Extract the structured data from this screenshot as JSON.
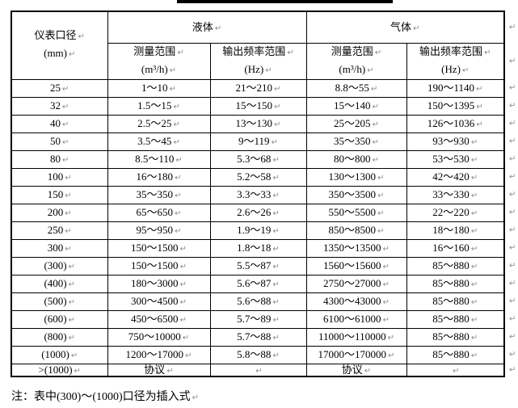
{
  "formatting_mark": "↵",
  "colors": {
    "border": "#000000",
    "formatting_mark_gray": "#8a8a8a",
    "title_underline": "#000000"
  },
  "table": {
    "header": {
      "diameter_line1": "仪表口径",
      "diameter_line2": "(mm)",
      "group_liquid": "液体",
      "group_gas": "气体",
      "range_line1": "测量范围",
      "range_line2": "(m³/h)",
      "freq_line1": "输出频率范围",
      "freq_line2": "(Hz)"
    },
    "rows": [
      [
        "25",
        "1～10",
        "21～210",
        "8.8～55",
        "190～1140"
      ],
      [
        "32",
        "1.5～15",
        "15～150",
        "15～140",
        "150～1395"
      ],
      [
        "40",
        "2.5～25",
        "13～130",
        "25～205",
        "126～1036"
      ],
      [
        "50",
        "3.5～45",
        "9～119",
        "35～350",
        "93～930"
      ],
      [
        "80",
        "8.5～110",
        "5.3～68",
        "80～800",
        "53～530"
      ],
      [
        "100",
        "16～180",
        "5.2～58",
        "130～1300",
        "42～420"
      ],
      [
        "150",
        "35～350",
        "3.3～33",
        "350～3500",
        "33～330"
      ],
      [
        "200",
        "65～650",
        "2.6～26",
        "550～5500",
        "22～220"
      ],
      [
        "250",
        "95～950",
        "1.9～19",
        "850～8500",
        "18～180"
      ],
      [
        "300",
        "150～1500",
        "1.8～18",
        "1350～13500",
        "16～160"
      ],
      [
        "(300)",
        "150～1500",
        "5.5～87",
        "1560～15600",
        "85～880"
      ],
      [
        "(400)",
        "180～3000",
        "5.6～87",
        "2750～27000",
        "85～880"
      ],
      [
        "(500)",
        "300～4500",
        "5.6～88",
        "4300～43000",
        "85～880"
      ],
      [
        "(600)",
        "450～6500",
        "5.7～89",
        "6100～61000",
        "85～880"
      ],
      [
        "(800)",
        "750～10000",
        "5.7～88",
        "11000～110000",
        "85～880"
      ],
      [
        "(1000)",
        "1200～17000",
        "5.8～88",
        "17000～170000",
        "85～880"
      ],
      [
        ">(1000)",
        "协议",
        "",
        "协议",
        ""
      ]
    ]
  },
  "footnote": "注：表中(300)～(1000)口径为插入式"
}
